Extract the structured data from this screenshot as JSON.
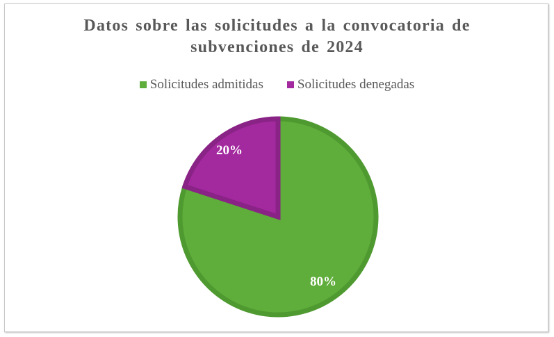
{
  "chart_data": {
    "type": "pie",
    "title_lines": [
      "Datos sobre las solicitudes a la convocatoria de",
      "subvenciones de 2024"
    ],
    "legend_position": "top",
    "slices": [
      {
        "name": "Solicitudes admitidas",
        "value": 80,
        "label": "80%",
        "color": "#5fad3a",
        "edge": "#4f9a30"
      },
      {
        "name": "Solicitudes denegadas",
        "value": 20,
        "label": "20%",
        "color": "#a3299f",
        "edge": "#8a2386"
      }
    ]
  }
}
